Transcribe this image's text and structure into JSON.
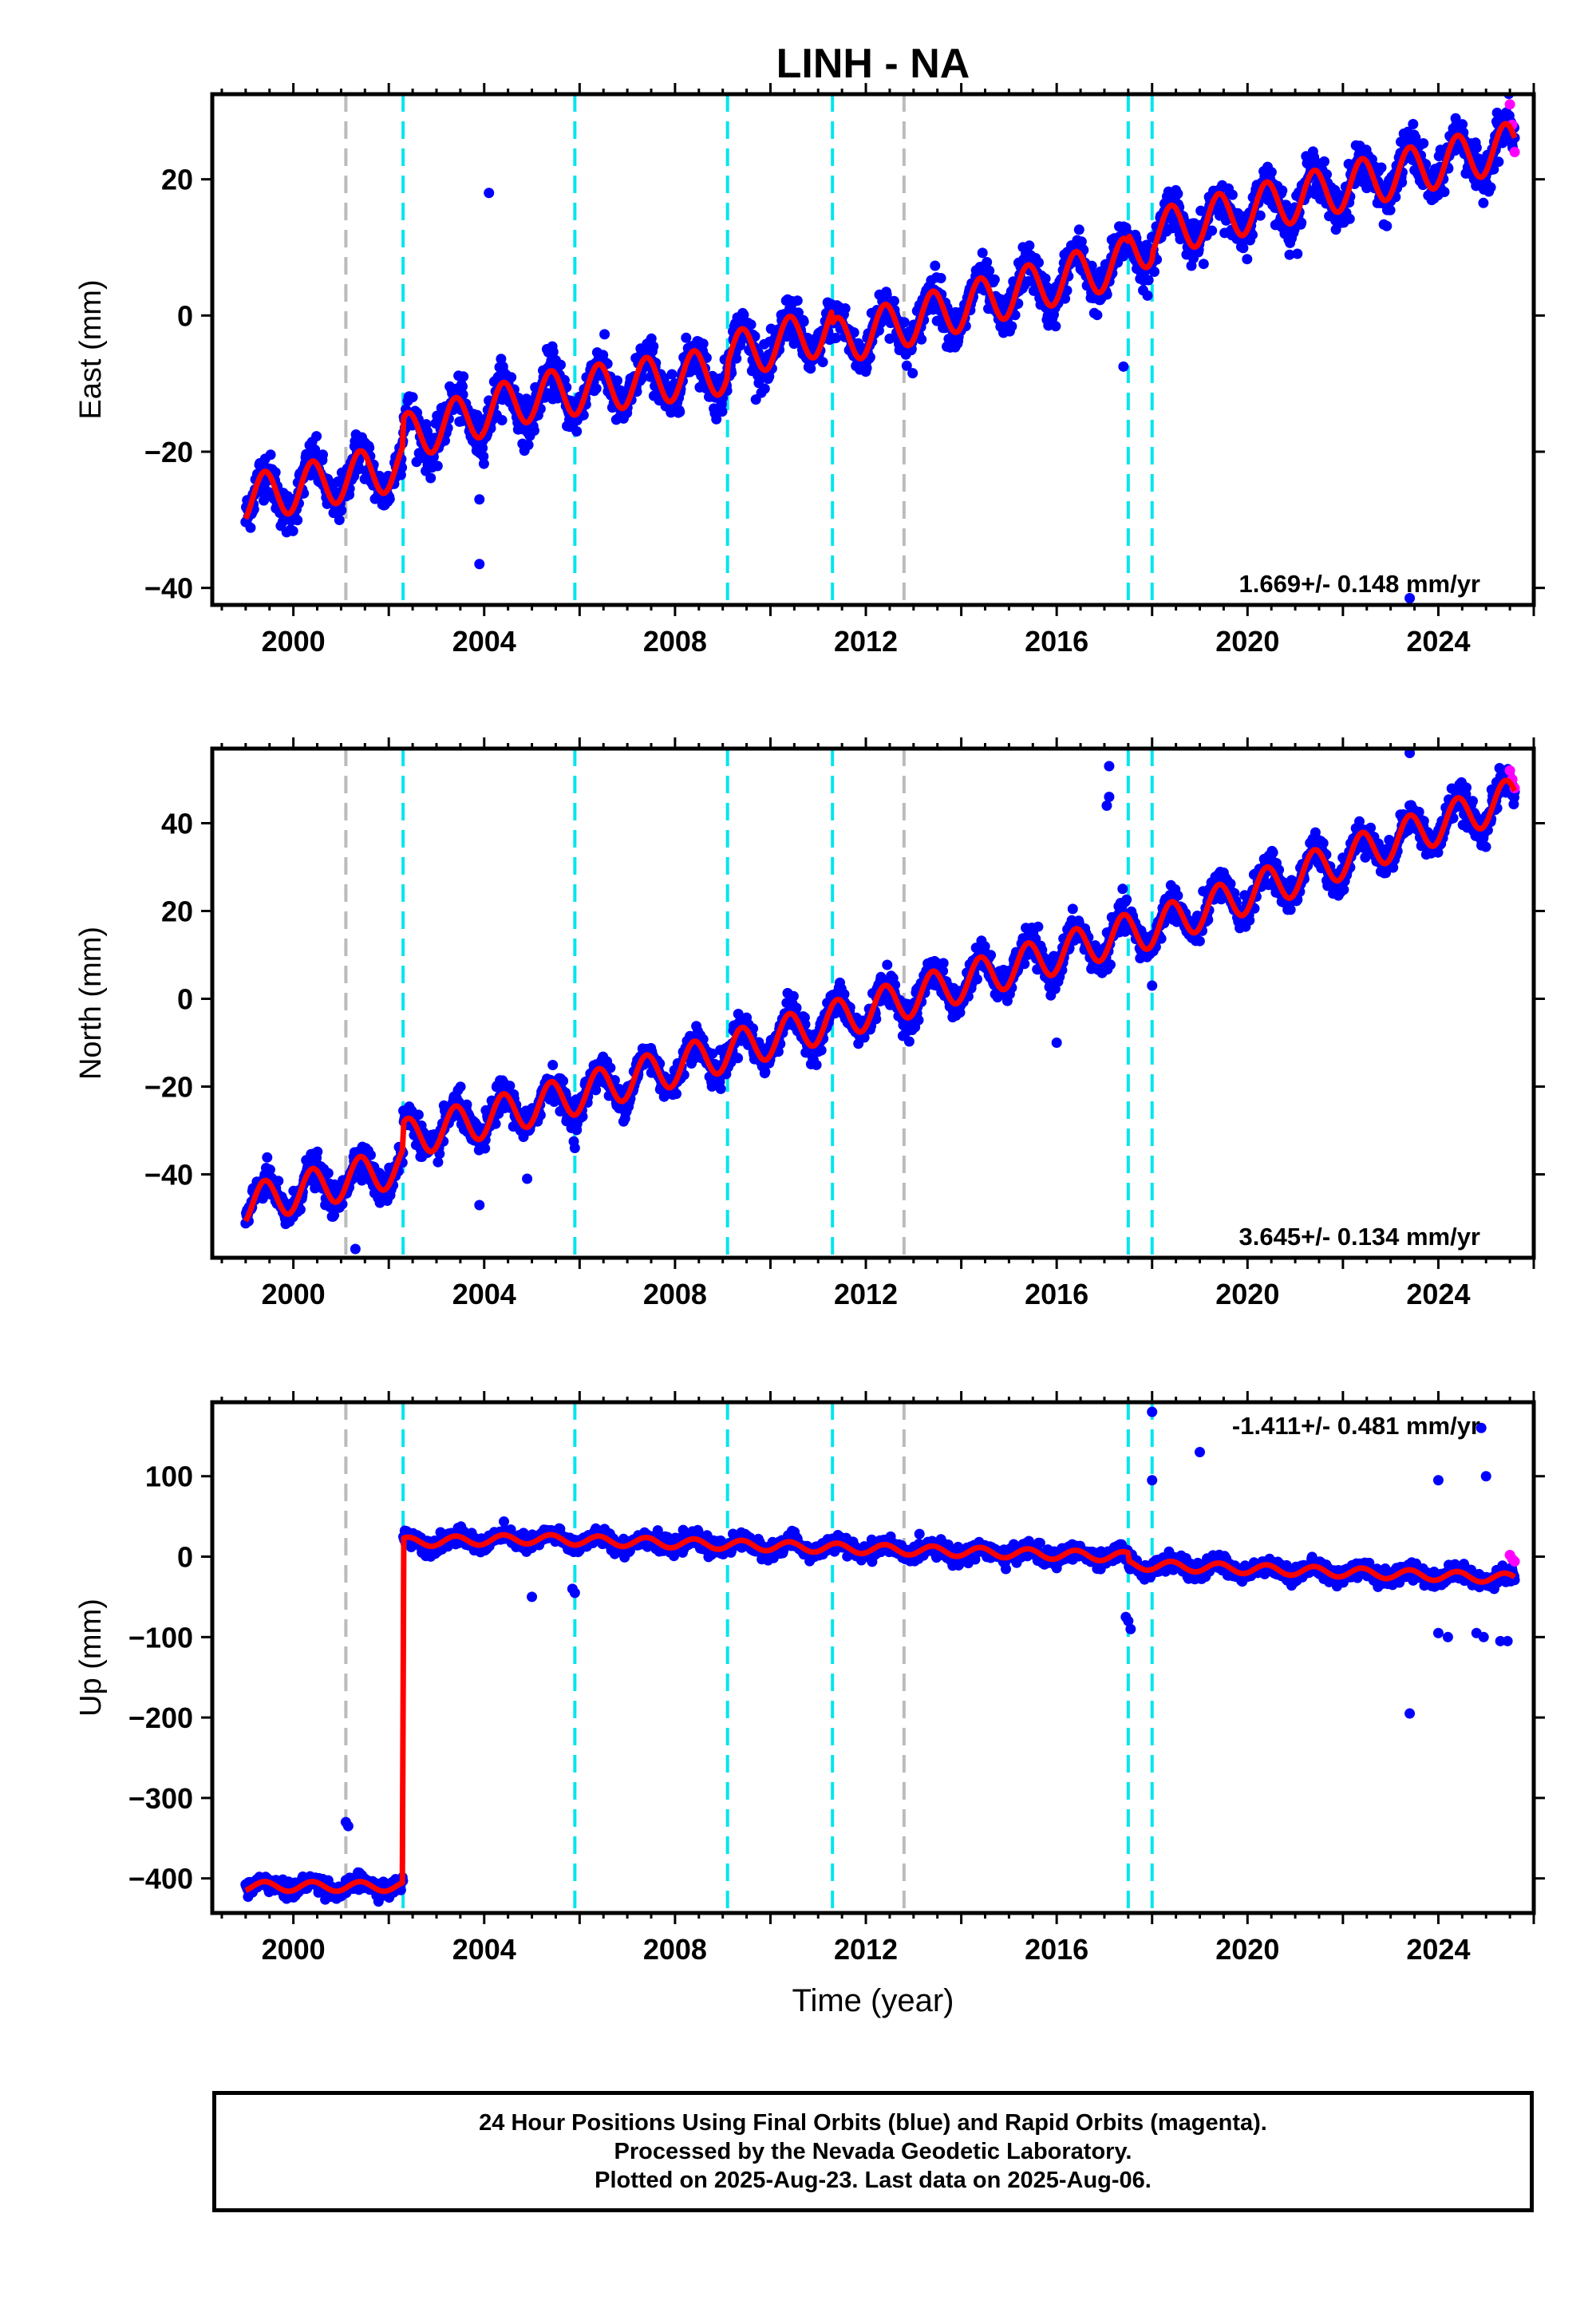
{
  "title": "LINH - NA",
  "xlabel": "Time (year)",
  "colors": {
    "final_orbits": "#0000ff",
    "rapid_orbits": "#ff00ff",
    "model": "#ff0000",
    "equipment_change": "#00e5ee",
    "other_event": "#bbbbbb",
    "frame": "#000000"
  },
  "footer": {
    "line1": "24 Hour Positions Using Final Orbits (blue) and Rapid Orbits (magenta).",
    "line2": "Processed by the Nevada Geodetic Laboratory.",
    "line3": "Plotted on 2025-Aug-23. Last data on 2025-Aug-06."
  },
  "chart_data": [
    {
      "type": "scatter",
      "component": "east",
      "ylabel": "East (mm)",
      "rate_label": "1.669+/- 0.148 mm/yr",
      "rate_position": "bottom-right",
      "xlim": [
        1998.3,
        2026.0
      ],
      "ylim": [
        -42.5,
        32.5
      ],
      "xticks": [
        2000,
        2004,
        2008,
        2012,
        2016,
        2020,
        2024
      ],
      "yticks": [
        -40,
        -20,
        0,
        20
      ],
      "grid": false,
      "data_span": [
        1999.0,
        2025.6
      ],
      "model_points": [
        [
          1999.0,
          -27
        ],
        [
          2002.3,
          -22
        ],
        [
          2002.3,
          -18
        ],
        [
          2005.0,
          -12
        ],
        [
          2009.1,
          -8
        ],
        [
          2009.1,
          -6
        ],
        [
          2011.3,
          -2
        ],
        [
          2011.3,
          -4
        ],
        [
          2017.5,
          8
        ],
        [
          2017.5,
          9
        ],
        [
          2018.0,
          11
        ],
        [
          2018.0,
          12
        ],
        [
          2025.6,
          25
        ]
      ],
      "annual_amplitude": 3.5,
      "noise_sd": 1.6,
      "outliers": [
        [
          2004.1,
          18
        ],
        [
          2003.9,
          -27
        ],
        [
          2003.9,
          -36.5
        ],
        [
          2017.4,
          -7.5
        ],
        [
          2023.4,
          -41.5
        ]
      ],
      "rapid_points": [
        [
          2025.5,
          31
        ],
        [
          2025.55,
          28
        ],
        [
          2025.6,
          24
        ]
      ]
    },
    {
      "type": "scatter",
      "component": "north",
      "ylabel": "North (mm)",
      "rate_label": "3.645+/- 0.134 mm/yr",
      "rate_position": "bottom-right",
      "xlim": [
        1998.3,
        2026.0
      ],
      "ylim": [
        -59,
        57
      ],
      "xticks": [
        2000,
        2004,
        2008,
        2012,
        2016,
        2020,
        2024
      ],
      "yticks": [
        -40,
        -20,
        0,
        20,
        40
      ],
      "grid": false,
      "data_span": [
        1999.0,
        2025.6
      ],
      "model_points": [
        [
          1999.0,
          -47
        ],
        [
          2002.3,
          -38
        ],
        [
          2002.3,
          -32
        ],
        [
          2005.9,
          -22
        ],
        [
          2009.1,
          -12
        ],
        [
          2011.3,
          -5
        ],
        [
          2017.5,
          15
        ],
        [
          2018.0,
          16
        ],
        [
          2025.6,
          46
        ]
      ],
      "annual_amplitude": 4.5,
      "noise_sd": 1.8,
      "outliers": [
        [
          2017.1,
          53
        ],
        [
          2017.1,
          46
        ],
        [
          2017.05,
          44
        ],
        [
          2016.0,
          -10
        ],
        [
          2018.0,
          3
        ],
        [
          2023.4,
          56
        ],
        [
          2003.9,
          -47
        ],
        [
          2001.3,
          -57
        ],
        [
          2005.9,
          -34
        ],
        [
          2004.9,
          -41
        ]
      ],
      "rapid_points": [
        [
          2025.5,
          52
        ],
        [
          2025.55,
          50
        ],
        [
          2025.6,
          48
        ]
      ]
    },
    {
      "type": "scatter",
      "component": "up",
      "ylabel": "Up (mm)",
      "rate_label": "-1.411+/- 0.481 mm/yr",
      "rate_position": "top-right",
      "xlim": [
        1998.3,
        2026.0
      ],
      "ylim": [
        -443,
        192
      ],
      "xticks": [
        2000,
        2004,
        2008,
        2012,
        2016,
        2020,
        2024
      ],
      "yticks": [
        -400,
        -300,
        -200,
        -100,
        0,
        100
      ],
      "grid": false,
      "data_span": [
        1999.0,
        2025.6
      ],
      "model_points": [
        [
          1999.0,
          -410
        ],
        [
          2002.3,
          -410
        ],
        [
          2002.3,
          18
        ],
        [
          2005.0,
          22
        ],
        [
          2017.5,
          0
        ],
        [
          2017.5,
          -10
        ],
        [
          2025.6,
          -27
        ]
      ],
      "annual_amplitude": 6,
      "noise_sd": 5,
      "outliers": [
        [
          2001.1,
          -330
        ],
        [
          2001.15,
          -335
        ],
        [
          2005.0,
          -50
        ],
        [
          2005.9,
          -45
        ],
        [
          2005.85,
          -40
        ],
        [
          2017.5,
          -80
        ],
        [
          2017.55,
          -90
        ],
        [
          2017.45,
          -75
        ],
        [
          2018.0,
          180
        ],
        [
          2018.0,
          95
        ],
        [
          2019.0,
          130
        ],
        [
          2023.4,
          -195
        ],
        [
          2024.0,
          95
        ],
        [
          2024.0,
          -95
        ],
        [
          2024.2,
          -100
        ],
        [
          2024.8,
          -95
        ],
        [
          2024.95,
          -100
        ],
        [
          2025.0,
          100
        ],
        [
          2024.9,
          160
        ],
        [
          2025.45,
          -105
        ],
        [
          2025.3,
          -105
        ]
      ],
      "rapid_points": [
        [
          2025.5,
          2
        ],
        [
          2025.55,
          -3
        ],
        [
          2025.6,
          -6
        ]
      ]
    }
  ],
  "events": {
    "equipment_changes": [
      2002.3,
      2005.9,
      2009.1,
      2011.3,
      2017.5,
      2018.0
    ],
    "other_events": [
      2001.1,
      2012.8
    ]
  }
}
